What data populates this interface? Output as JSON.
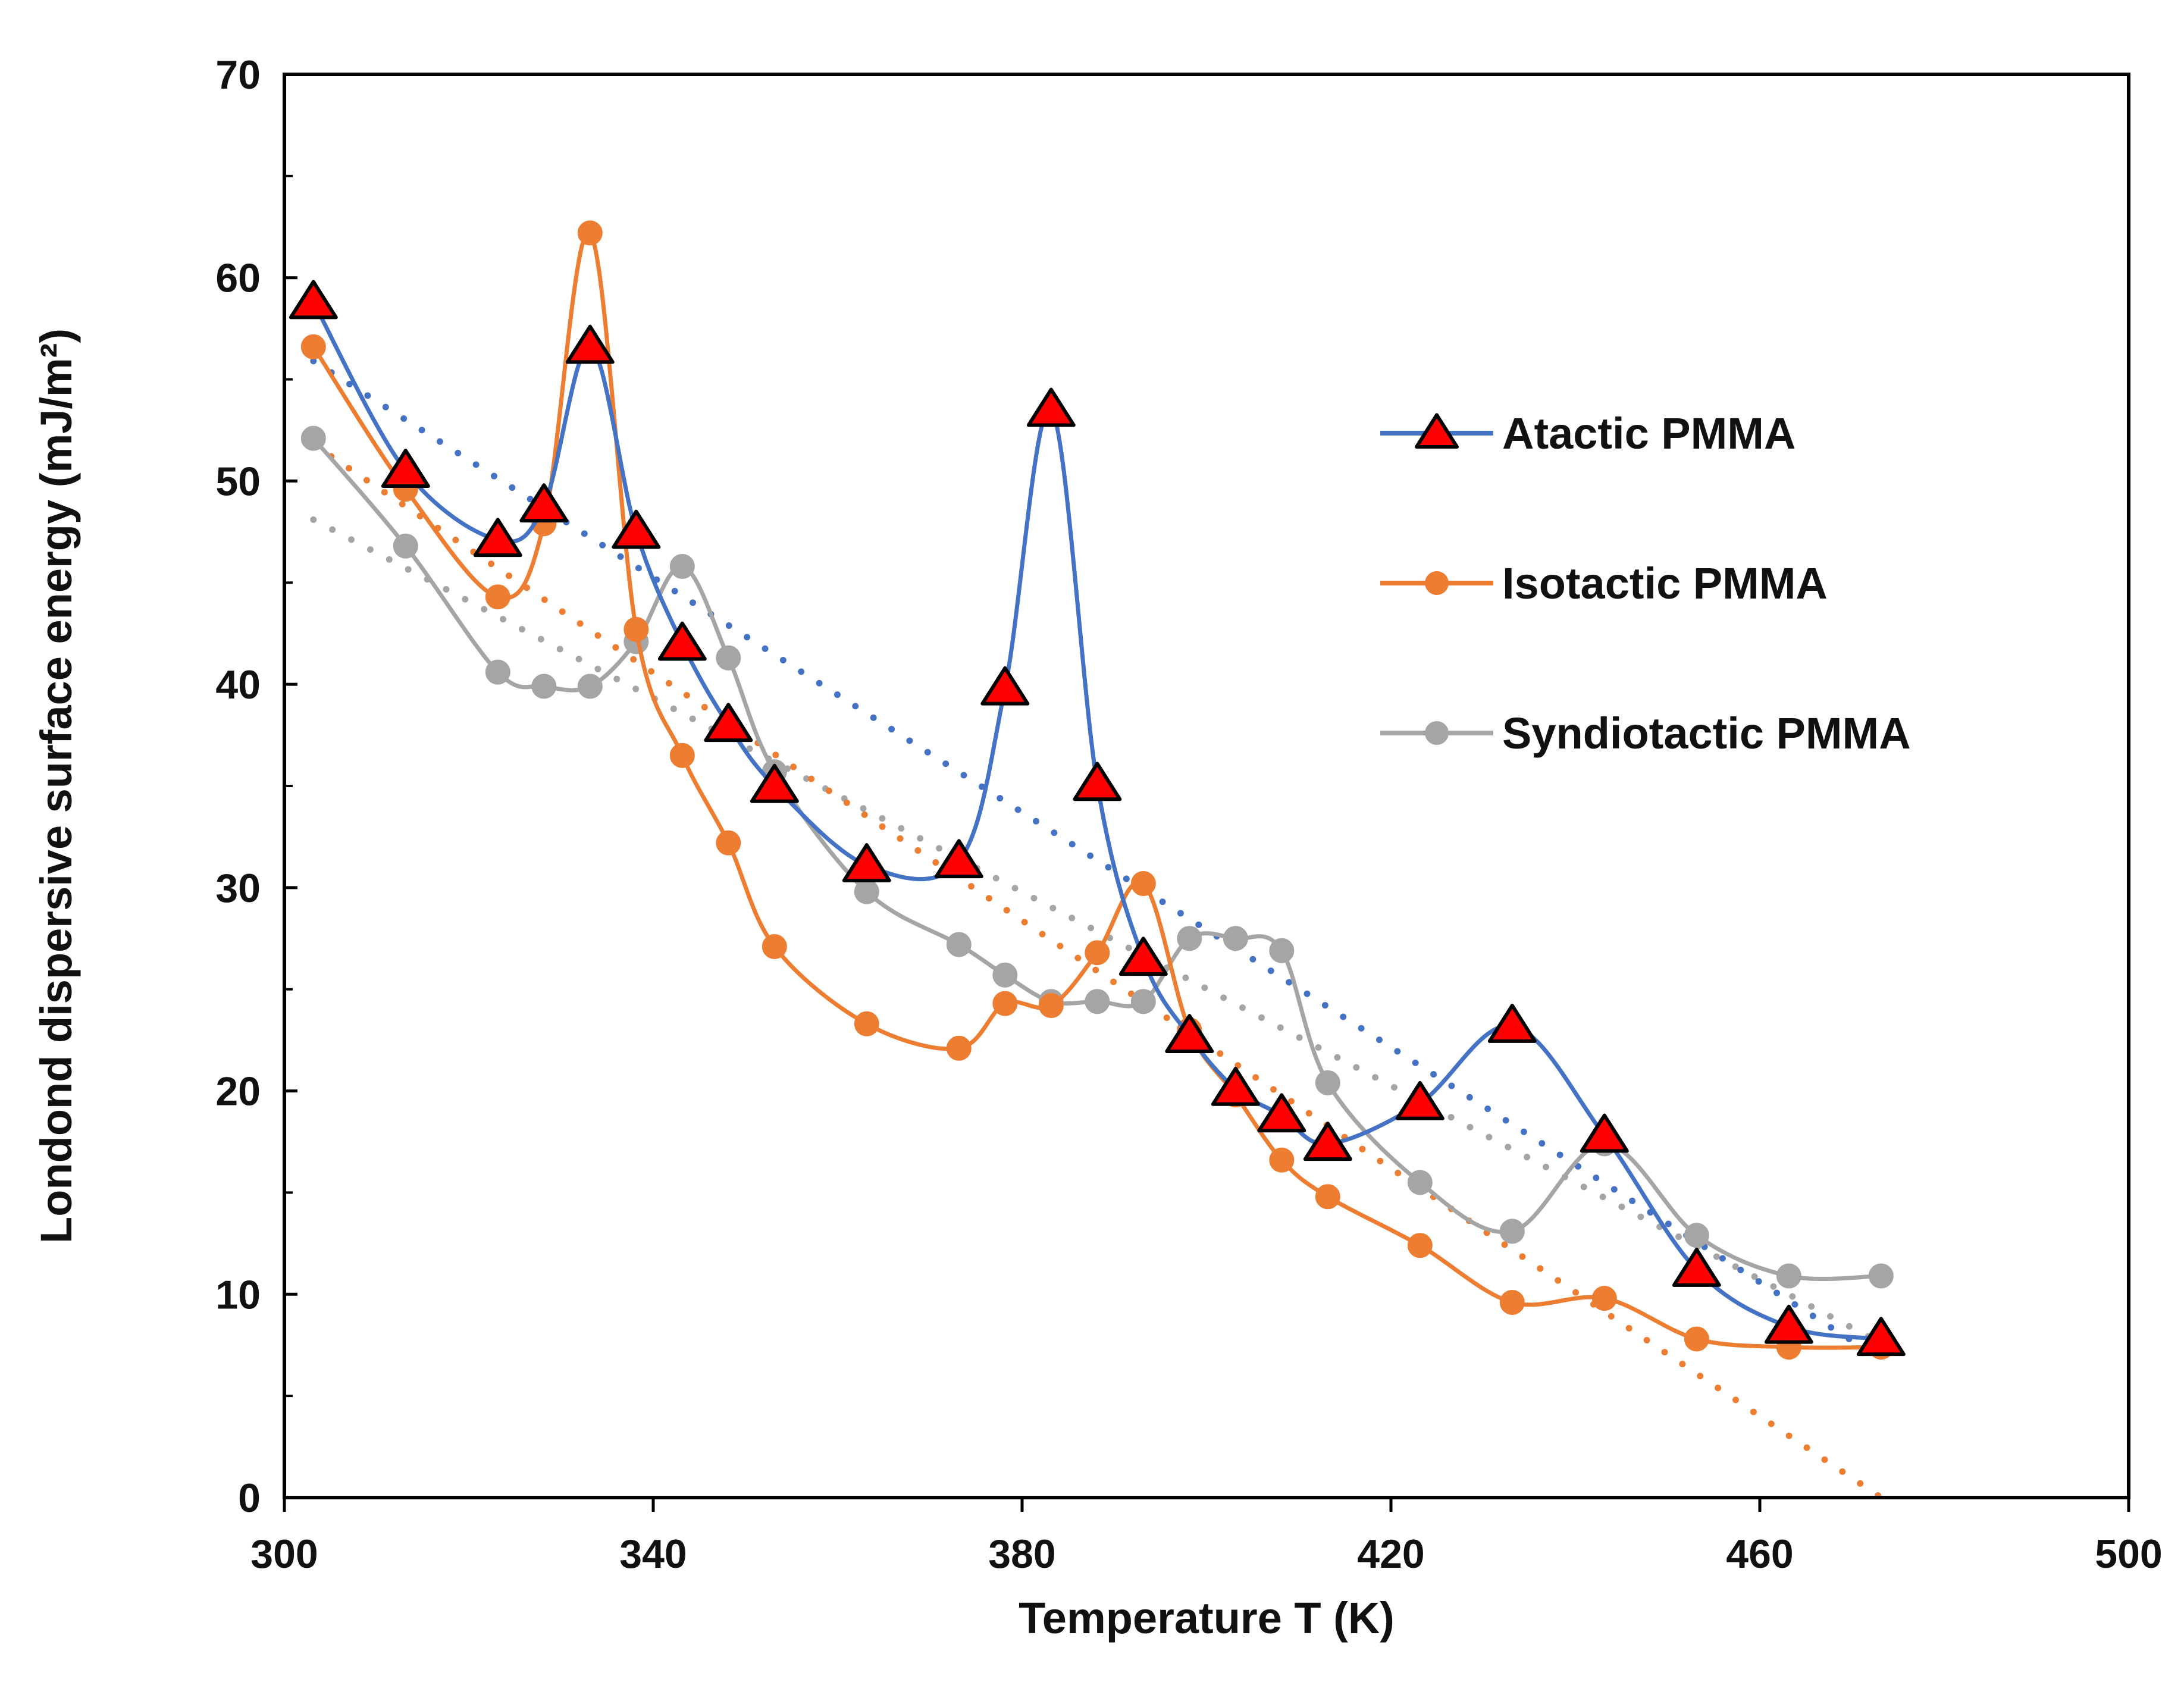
{
  "chart_data": {
    "type": "line",
    "title": "",
    "xlabel": "Temperature T (K)",
    "ylabel": "Londond dispersive surface energy (mJ/m²)",
    "xlim": [
      300,
      500
    ],
    "ylim": [
      0,
      70
    ],
    "x_ticks": [
      "300",
      "340",
      "380",
      "420",
      "460",
      "500"
    ],
    "y_ticks": [
      "0",
      "10",
      "20",
      "30",
      "40",
      "50",
      "60",
      "70"
    ],
    "grid": false,
    "legend_position": "right",
    "series": [
      {
        "name": "Atactic PMMA",
        "color": "#4472C4",
        "marker": "triangle",
        "marker_fill": "#FF0000",
        "x": [
          303.15,
          313.15,
          323.15,
          328.15,
          333.15,
          338.15,
          343.15,
          348.15,
          353.15,
          363.15,
          373.15,
          378.15,
          383.15,
          388.15,
          393.15,
          398.15,
          403.15,
          408.15,
          413.15,
          423.15,
          433.15,
          443.15,
          453.15,
          463.15,
          473.15
        ],
        "y": [
          58.8,
          50.5,
          47.1,
          48.8,
          56.6,
          47.5,
          42.0,
          38.0,
          35.0,
          31.1,
          31.3,
          39.8,
          53.5,
          35.1,
          26.5,
          22.7,
          20.1,
          18.8,
          17.4,
          19.4,
          23.2,
          17.8,
          11.2,
          8.4,
          7.8
        ],
        "trend": {
          "y_start": 55.9,
          "y_end": 6.8
        }
      },
      {
        "name": "Isotactic PMMA",
        "color": "#ED7D31",
        "marker": "circle",
        "marker_fill": "#ED7D31",
        "x": [
          303.15,
          313.15,
          323.15,
          328.15,
          333.15,
          338.15,
          343.15,
          348.15,
          353.15,
          363.15,
          373.15,
          378.15,
          383.15,
          388.15,
          393.15,
          398.15,
          403.15,
          408.15,
          413.15,
          423.15,
          433.15,
          443.15,
          453.15,
          463.15,
          473.15
        ],
        "y": [
          56.6,
          49.6,
          44.3,
          47.9,
          62.2,
          42.7,
          36.5,
          32.2,
          27.1,
          23.3,
          22.1,
          24.3,
          24.2,
          26.8,
          30.2,
          23.0,
          19.8,
          16.6,
          14.8,
          12.4,
          9.6,
          9.8,
          7.8,
          7.4,
          7.4
        ],
        "trend": {
          "y_start": 51.8,
          "y_end": 0.0
        }
      },
      {
        "name": "Syndiotactic PMMA",
        "color": "#A5A5A5",
        "marker": "circle",
        "marker_fill": "#A5A5A5",
        "x": [
          303.15,
          313.15,
          323.15,
          328.15,
          333.15,
          338.15,
          343.15,
          348.15,
          353.15,
          363.15,
          373.15,
          378.15,
          383.15,
          388.15,
          393.15,
          398.15,
          403.15,
          408.15,
          413.15,
          423.15,
          433.15,
          443.15,
          453.15,
          463.15,
          473.15
        ],
        "y": [
          52.1,
          46.8,
          40.6,
          39.9,
          39.9,
          42.1,
          45.8,
          41.3,
          35.7,
          29.8,
          27.2,
          25.7,
          24.4,
          24.4,
          24.4,
          27.5,
          27.5,
          26.9,
          20.4,
          15.5,
          13.1,
          17.4,
          12.9,
          10.9,
          10.9
        ],
        "trend": {
          "y_start": 48.1,
          "y_end": 7.6
        }
      }
    ]
  }
}
